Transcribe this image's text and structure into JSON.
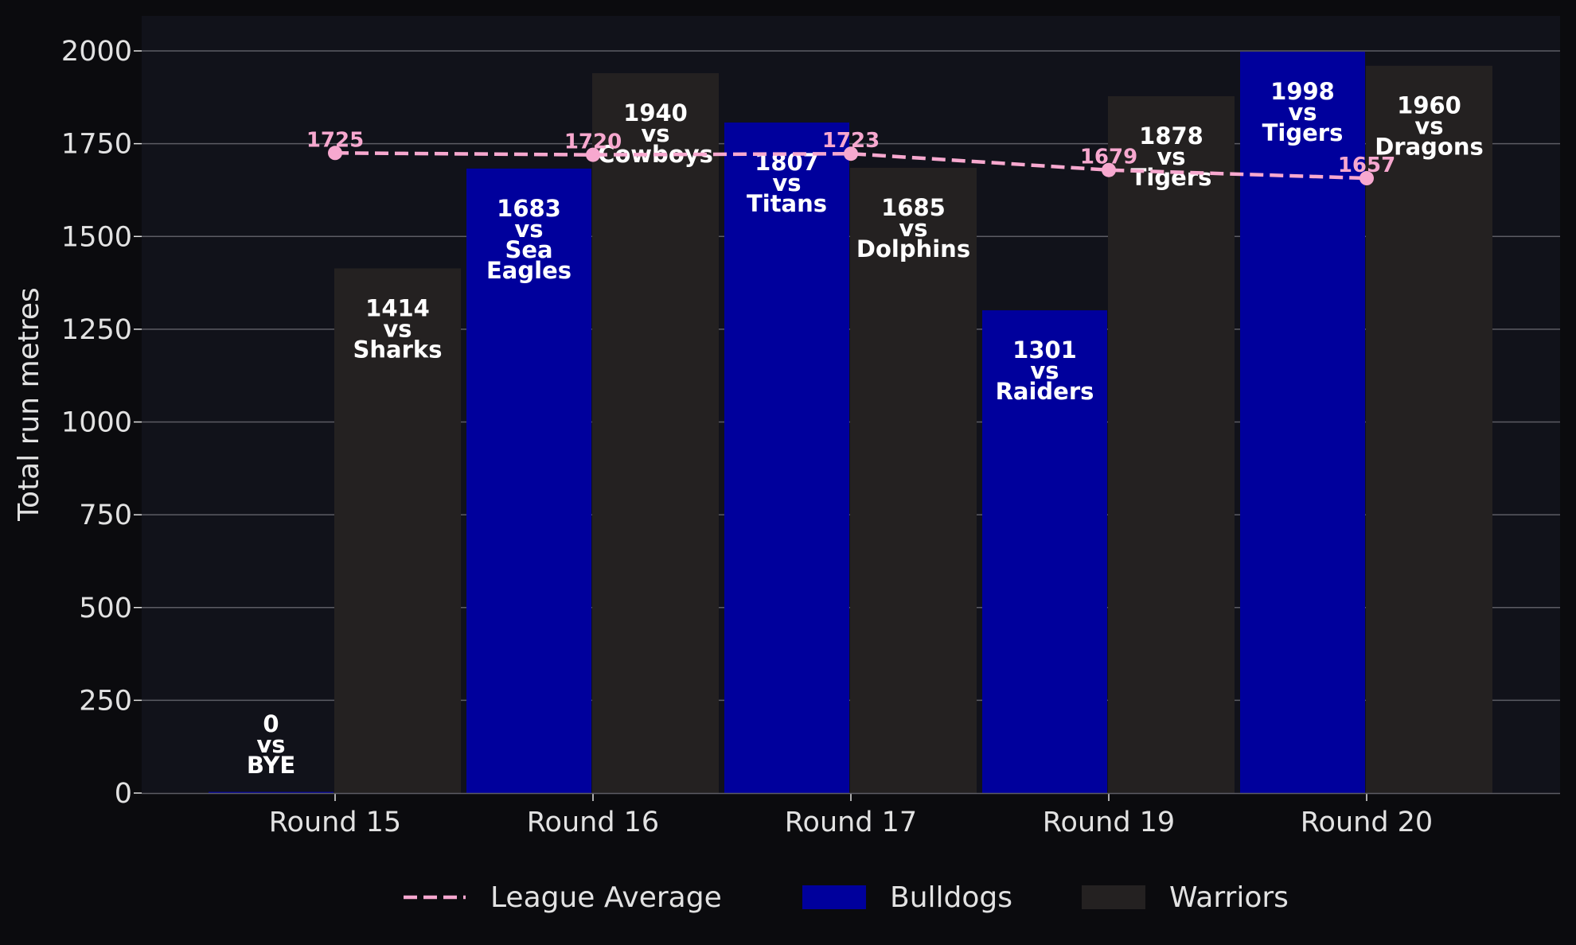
{
  "chart_data": {
    "type": "bar",
    "title": "",
    "xlabel": "",
    "ylabel": "Total run metres",
    "ylim": [
      0,
      2100
    ],
    "yticks": [
      0,
      250,
      500,
      750,
      1000,
      1250,
      1500,
      1750,
      2000
    ],
    "categories": [
      "Round 15",
      "Round 16",
      "Round 17",
      "Round 19",
      "Round 20"
    ],
    "grid": "horizontal",
    "legend_position": "bottom",
    "series": [
      {
        "name": "Bulldogs",
        "type": "bar",
        "color": "#00009c",
        "values": [
          0,
          1683,
          1807,
          1301,
          1998
        ],
        "value_labels": [
          "0",
          "1683",
          "1807",
          "1301",
          "1998"
        ],
        "vs_word": "vs",
        "opponents": [
          "BYE",
          "Sea Eagles",
          "Titans",
          "Raiders",
          "Tigers"
        ]
      },
      {
        "name": "Warriors",
        "type": "bar",
        "color": "#242121",
        "values": [
          1414,
          1940,
          1685,
          1878,
          1960
        ],
        "value_labels": [
          "1414",
          "1940",
          "1685",
          "1878",
          "1960"
        ],
        "vs_word": "vs",
        "opponents": [
          "Sharks",
          "Cowboys",
          "Dolphins",
          "Tigers",
          "Dragons"
        ]
      },
      {
        "name": "League Average",
        "type": "line",
        "style": "dashed",
        "color": "#f7a8cf",
        "values": [
          1725,
          1720,
          1723,
          1679,
          1657
        ],
        "value_labels": [
          "1725",
          "1720",
          "1723",
          "1679",
          "1657"
        ]
      }
    ]
  },
  "colors": {
    "page_background": "#0b0b0e",
    "plot_background": "#11121a",
    "grid": "#5c5c64",
    "text": "#e2e2e2",
    "bar_label": "#ffffff"
  }
}
